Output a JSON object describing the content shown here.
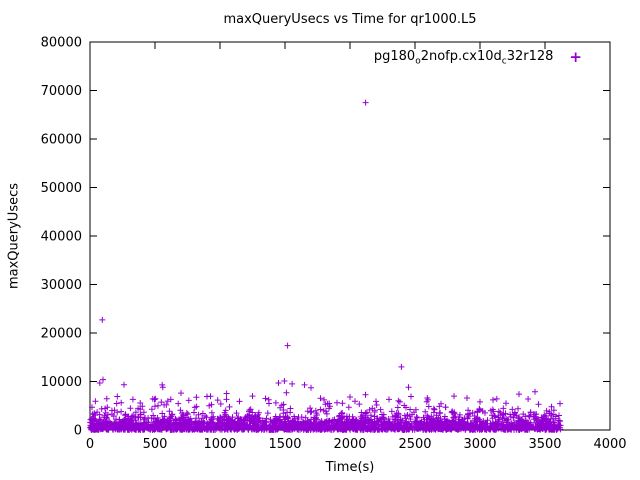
{
  "chart_data": {
    "type": "scatter",
    "title": "maxQueryUsecs vs Time for qr1000.L5",
    "xlabel": "Time(s)",
    "ylabel": "maxQueryUsecs",
    "xlim": [
      0,
      4000
    ],
    "ylim": [
      0,
      80000
    ],
    "xticks": [
      0,
      500,
      1000,
      1500,
      2000,
      2500,
      3000,
      3500,
      4000
    ],
    "yticks": [
      0,
      10000,
      20000,
      30000,
      40000,
      50000,
      60000,
      70000,
      80000
    ],
    "grid": false,
    "legend_position": "top-right-inside",
    "series": [
      {
        "name_parts": [
          {
            "text": "pg180"
          },
          {
            "text": "o",
            "sub": true
          },
          {
            "text": "2nofp.cx10d"
          },
          {
            "text": "c",
            "sub": true
          },
          {
            "text": "32r128"
          }
        ],
        "marker": "plus",
        "color": "#9400d3"
      }
    ],
    "outliers": [
      [
        95,
        22700
      ],
      [
        2120,
        67500
      ],
      [
        1520,
        17400
      ],
      [
        2395,
        13000
      ],
      [
        100,
        10400
      ],
      [
        75,
        9700
      ],
      [
        555,
        9300
      ],
      [
        560,
        8800
      ],
      [
        1450,
        9700
      ],
      [
        1495,
        10100
      ],
      [
        1555,
        9500
      ],
      [
        1650,
        9300
      ],
      [
        2450,
        8800
      ],
      [
        2800,
        7000
      ],
      [
        3300,
        7400
      ],
      [
        3370,
        6400
      ],
      [
        3450,
        5300
      ],
      [
        210,
        6900
      ],
      [
        240,
        5600
      ],
      [
        330,
        6300
      ],
      [
        700,
        7600
      ],
      [
        760,
        6100
      ],
      [
        900,
        6900
      ],
      [
        1050,
        6300
      ],
      [
        1150,
        5900
      ],
      [
        1250,
        7000
      ],
      [
        1350,
        6500
      ],
      [
        1700,
        8700
      ],
      [
        1800,
        6200
      ],
      [
        1900,
        5600
      ],
      [
        2000,
        6800
      ],
      [
        2200,
        5900
      ],
      [
        2300,
        6300
      ],
      [
        2600,
        6200
      ],
      [
        2700,
        5400
      ],
      [
        2900,
        6600
      ],
      [
        3000,
        5800
      ],
      [
        3100,
        6200
      ],
      [
        3200,
        5500
      ],
      [
        3550,
        4800
      ]
    ],
    "dense_band": {
      "description": "dense band of samples hugging y=0..~5000 across full time range",
      "x_min": 0,
      "x_max": 3620,
      "count": 2600,
      "y_exponential_mean": 1250,
      "y_cap": 11000,
      "seed": 7
    }
  }
}
